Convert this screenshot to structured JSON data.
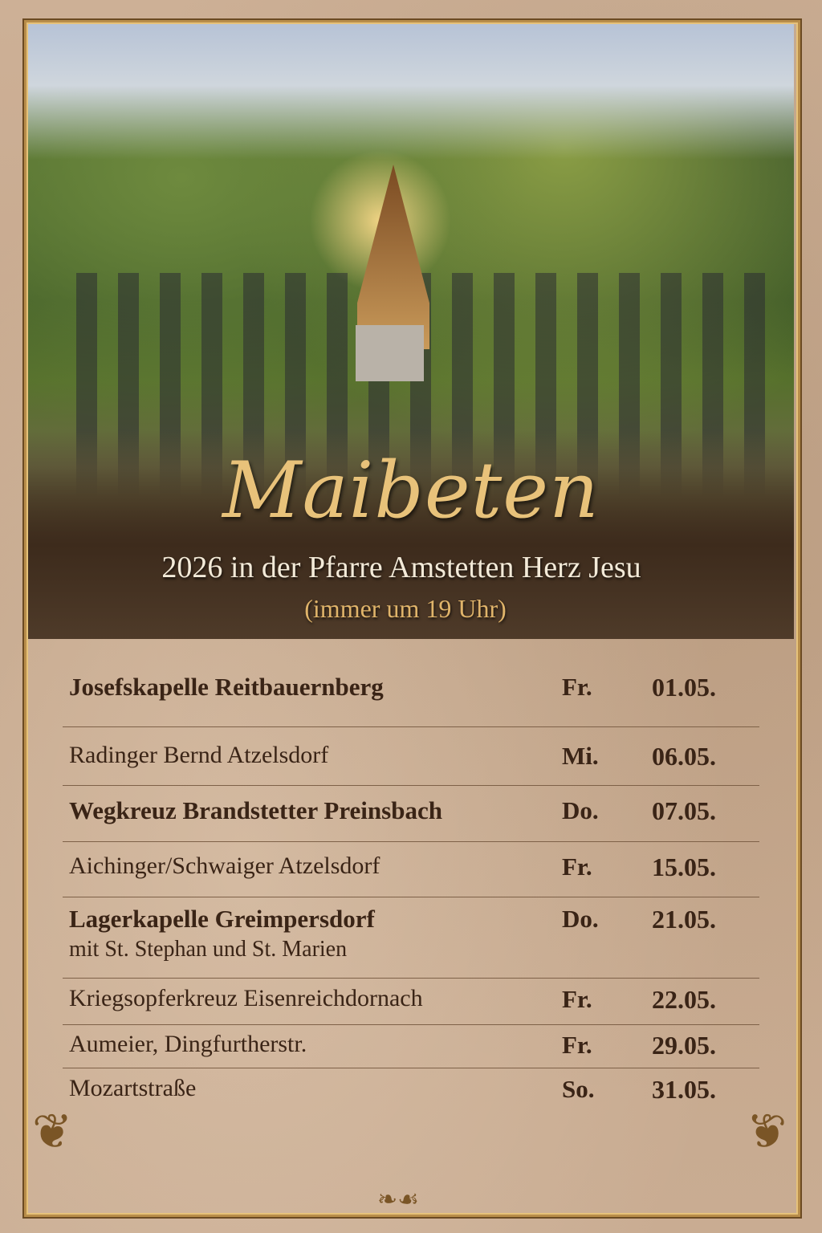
{
  "poster": {
    "title": "Maibeten",
    "subtitle": "2026 in der Pfarre Amstetten Herz Jesu",
    "note": "(immer um 19 Uhr)"
  },
  "schedule": [
    {
      "location": "Josefskapelle Reitbauernberg",
      "detail": "",
      "day": "Fr.",
      "date": "01.05."
    },
    {
      "location": "Radinger Bernd Atzelsdorf",
      "detail": "",
      "day": "Mi.",
      "date": "06.05."
    },
    {
      "location": "Wegkreuz Brandstetter Preinsbach",
      "detail": "",
      "day": "Do.",
      "date": "07.05."
    },
    {
      "location": "Aichinger/Schwaiger Atzelsdorf",
      "detail": "",
      "day": "Fr.",
      "date": "15.05."
    },
    {
      "location": "Lagerkapelle Greimpersdorf",
      "detail": "mit St. Stephan und St. Marien",
      "day": "Do.",
      "date": "21.05."
    },
    {
      "location": "Kriegsopferkreuz Eisenreichdornach",
      "detail": "",
      "day": "Fr.",
      "date": "22.05."
    },
    {
      "location": "Aumeier, Dingfurtherstr.",
      "detail": "",
      "day": "Fr.",
      "date": "29.05."
    },
    {
      "location": "Mozartstraße",
      "detail": "",
      "day": "So.",
      "date": "31.05."
    }
  ],
  "colors": {
    "gold": "#e8c27a",
    "text": "#3a2416",
    "paper": "#c9ab8e"
  }
}
